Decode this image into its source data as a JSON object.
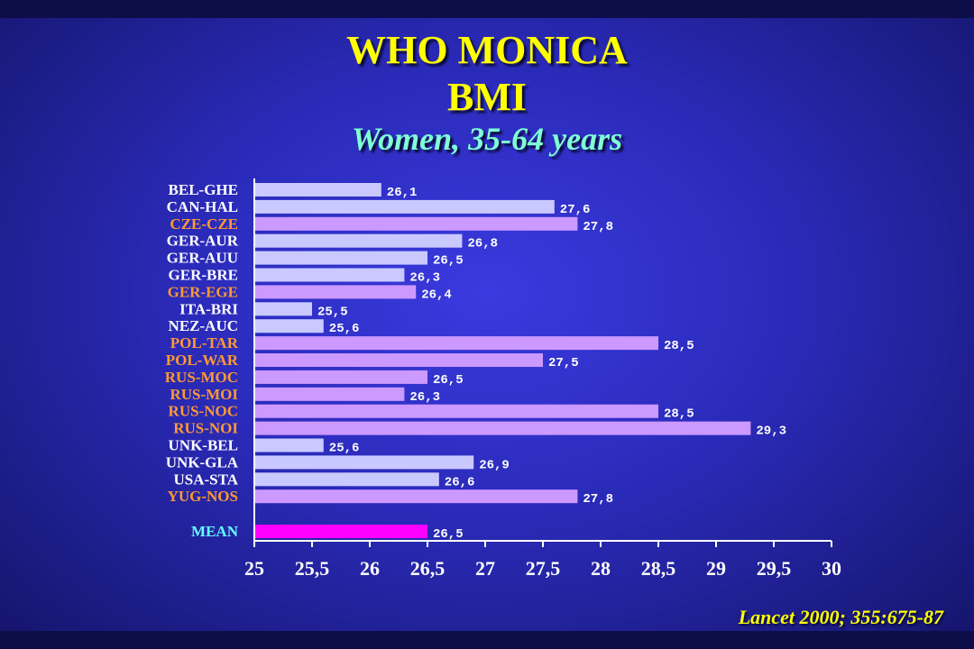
{
  "header": {
    "title_line1": "WHO MONICA",
    "title_line2": "BMI",
    "subtitle": "Women, 35-64 years"
  },
  "source": "Lancet 2000; 355:675-87",
  "colors": {
    "bar_light": "#c9c9ff",
    "bar_violet": "#cc99ff",
    "bar_mean": "#ff00ff",
    "label_white": "#ffffff",
    "label_orange": "#ff9933",
    "label_mean": "#66ffff"
  },
  "chart_data": {
    "type": "bar",
    "orientation": "horizontal",
    "title": "WHO MONICA BMI",
    "subtitle": "Women, 35-64 years",
    "xlabel": "",
    "ylabel": "",
    "xlim": [
      25,
      30
    ],
    "xticks": [
      "25",
      "25,5",
      "26",
      "26,5",
      "27",
      "27,5",
      "28",
      "28,5",
      "29",
      "29,5",
      "30"
    ],
    "categories": [
      "BEL-GHE",
      "CAN-HAL",
      "CZE-CZE",
      "GER-AUR",
      "GER-AUU",
      "GER-BRE",
      "GER-EGE",
      "ITA-BRI",
      "NEZ-AUC",
      "POL-TAR",
      "POL-WAR",
      "RUS-MOC",
      "RUS-MOI",
      "RUS-NOC",
      "RUS-NOI",
      "UNK-BEL",
      "UNK-GLA",
      "USA-STA",
      "YUG-NOS"
    ],
    "values": [
      26.1,
      27.6,
      27.8,
      26.8,
      26.5,
      26.3,
      26.4,
      25.5,
      25.6,
      28.5,
      27.5,
      26.5,
      26.3,
      28.5,
      29.3,
      25.6,
      26.9,
      26.6,
      27.8
    ],
    "value_labels": [
      "26,1",
      "27,6",
      "27,8",
      "26,8",
      "26,5",
      "26,3",
      "26,4",
      "25,5",
      "25,6",
      "28,5",
      "27,5",
      "26,5",
      "26,3",
      "28,5",
      "29,3",
      "25,6",
      "26,9",
      "26,6",
      "27,8"
    ],
    "highlighted": [
      false,
      false,
      true,
      false,
      false,
      false,
      true,
      false,
      false,
      true,
      true,
      true,
      true,
      true,
      true,
      false,
      false,
      false,
      true
    ],
    "mean": {
      "label": "MEAN",
      "value": 26.5,
      "value_label": "26,5"
    },
    "grid": false,
    "legend": "none"
  }
}
